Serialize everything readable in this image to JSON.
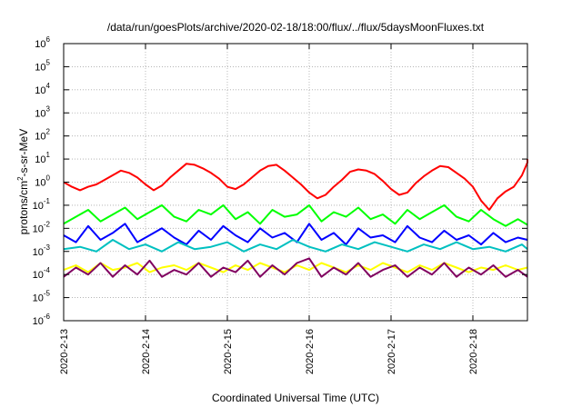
{
  "chart_data": {
    "type": "line",
    "title": "/data/run/goesPlots/archive/2020-02-18/18:00/flux/../flux/5daysMoonFluxes.txt",
    "xlabel": "Coordinated Universal Time (UTC)",
    "ylabel": "protons/cm²-s-sr-MeV",
    "ylabel_parts": {
      "prefix": "protons/cm",
      "sup": "2",
      "suffix": "-s-sr-MeV"
    },
    "yscale": "log",
    "ylim_exp": [
      -6,
      6
    ],
    "y_ticks": [
      {
        "base": "10",
        "exp": "-6"
      },
      {
        "base": "10",
        "exp": "-5"
      },
      {
        "base": "10",
        "exp": "-4"
      },
      {
        "base": "10",
        "exp": "-3"
      },
      {
        "base": "10",
        "exp": "-2"
      },
      {
        "base": "10",
        "exp": "-1"
      },
      {
        "base": "10",
        "exp": "0"
      },
      {
        "base": "10",
        "exp": "1"
      },
      {
        "base": "10",
        "exp": "2"
      },
      {
        "base": "10",
        "exp": "3"
      },
      {
        "base": "10",
        "exp": "4"
      },
      {
        "base": "10",
        "exp": "5"
      },
      {
        "base": "10",
        "exp": "6"
      }
    ],
    "x_ticks": [
      "2020-2-13",
      "2020-2-14",
      "2020-2-15",
      "2020-2-16",
      "2020-2-17",
      "2020-2-18"
    ],
    "xlim_days": [
      0,
      5.78
    ],
    "grid": true,
    "series": [
      {
        "color": "#ff0000",
        "x_days": [
          0.0,
          0.1,
          0.2,
          0.3,
          0.4,
          0.5,
          0.6,
          0.7,
          0.8,
          0.9,
          1.0,
          1.1,
          1.2,
          1.3,
          1.4,
          1.5,
          1.6,
          1.7,
          1.8,
          1.9,
          2.0,
          2.1,
          2.2,
          2.3,
          2.4,
          2.5,
          2.6,
          2.7,
          2.8,
          2.9,
          3.0,
          3.1,
          3.2,
          3.3,
          3.4,
          3.5,
          3.6,
          3.7,
          3.8,
          3.9,
          4.0,
          4.1,
          4.2,
          4.3,
          4.4,
          4.5,
          4.6,
          4.7,
          4.8,
          4.9,
          5.0,
          5.1,
          5.2,
          5.3,
          5.4,
          5.5,
          5.6,
          5.7,
          5.78
        ],
        "log10_y": [
          0.0,
          -0.2,
          -0.35,
          -0.2,
          -0.1,
          0.1,
          0.3,
          0.5,
          0.4,
          0.2,
          -0.1,
          -0.35,
          -0.15,
          0.2,
          0.5,
          0.8,
          0.75,
          0.6,
          0.4,
          0.15,
          -0.2,
          -0.3,
          -0.1,
          0.2,
          0.5,
          0.7,
          0.75,
          0.5,
          0.2,
          -0.1,
          -0.45,
          -0.7,
          -0.55,
          -0.2,
          0.1,
          0.45,
          0.55,
          0.5,
          0.35,
          0.05,
          -0.3,
          -0.55,
          -0.45,
          -0.05,
          0.25,
          0.5,
          0.7,
          0.65,
          0.4,
          0.15,
          -0.2,
          -0.8,
          -1.2,
          -0.7,
          -0.4,
          -0.2,
          0.3,
          0.85,
          1.0
        ]
      },
      {
        "color": "#00ff00",
        "x_days": [
          0.0,
          0.15,
          0.3,
          0.45,
          0.6,
          0.75,
          0.9,
          1.05,
          1.2,
          1.35,
          1.5,
          1.65,
          1.8,
          1.95,
          2.1,
          2.25,
          2.4,
          2.55,
          2.7,
          2.85,
          3.0,
          3.15,
          3.3,
          3.45,
          3.6,
          3.75,
          3.9,
          4.05,
          4.2,
          4.35,
          4.5,
          4.65,
          4.8,
          4.95,
          5.1,
          5.25,
          5.4,
          5.55,
          5.78
        ],
        "log10_y": [
          -1.8,
          -1.5,
          -1.2,
          -1.7,
          -1.4,
          -1.1,
          -1.6,
          -1.3,
          -1.0,
          -1.5,
          -1.7,
          -1.2,
          -1.4,
          -1.0,
          -1.6,
          -1.3,
          -1.8,
          -1.2,
          -1.5,
          -1.4,
          -1.0,
          -1.7,
          -1.3,
          -1.5,
          -1.1,
          -1.6,
          -1.4,
          -1.8,
          -1.2,
          -1.6,
          -1.3,
          -1.0,
          -1.5,
          -1.7,
          -1.2,
          -1.6,
          -1.9,
          -1.6,
          -1.85
        ]
      },
      {
        "color": "#0000ff",
        "x_days": [
          0.0,
          0.15,
          0.3,
          0.45,
          0.6,
          0.75,
          0.9,
          1.05,
          1.2,
          1.35,
          1.5,
          1.65,
          1.8,
          1.95,
          2.1,
          2.25,
          2.4,
          2.55,
          2.7,
          2.85,
          3.0,
          3.15,
          3.3,
          3.45,
          3.6,
          3.75,
          3.9,
          4.05,
          4.2,
          4.35,
          4.5,
          4.65,
          4.8,
          4.95,
          5.1,
          5.25,
          5.4,
          5.55,
          5.78
        ],
        "log10_y": [
          -2.3,
          -2.6,
          -1.9,
          -2.5,
          -2.2,
          -1.8,
          -2.6,
          -2.3,
          -2.0,
          -2.4,
          -2.7,
          -2.1,
          -2.5,
          -1.9,
          -2.3,
          -2.6,
          -2.0,
          -2.4,
          -2.2,
          -2.6,
          -1.8,
          -2.5,
          -2.2,
          -2.7,
          -2.0,
          -2.4,
          -2.3,
          -2.6,
          -1.9,
          -2.4,
          -2.6,
          -2.1,
          -2.5,
          -2.3,
          -2.7,
          -2.2,
          -2.6,
          -2.4,
          -2.5
        ]
      },
      {
        "color": "#00c0c0",
        "x_days": [
          0.0,
          0.2,
          0.4,
          0.6,
          0.8,
          1.0,
          1.2,
          1.4,
          1.6,
          1.8,
          2.0,
          2.2,
          2.4,
          2.6,
          2.8,
          3.0,
          3.2,
          3.4,
          3.6,
          3.8,
          4.0,
          4.2,
          4.4,
          4.6,
          4.8,
          5.0,
          5.2,
          5.4,
          5.6,
          5.78
        ],
        "log10_y": [
          -2.9,
          -2.8,
          -3.0,
          -2.5,
          -2.9,
          -2.7,
          -3.0,
          -2.6,
          -2.9,
          -2.8,
          -2.6,
          -3.0,
          -2.7,
          -2.9,
          -2.5,
          -2.8,
          -3.0,
          -2.7,
          -2.9,
          -2.6,
          -2.8,
          -3.0,
          -2.7,
          -2.9,
          -2.6,
          -2.9,
          -2.8,
          -3.0,
          -2.7,
          -2.9
        ]
      },
      {
        "color": "#ffff00",
        "x_days": [
          0.0,
          0.15,
          0.3,
          0.45,
          0.6,
          0.75,
          0.9,
          1.05,
          1.2,
          1.35,
          1.5,
          1.65,
          1.8,
          1.95,
          2.1,
          2.25,
          2.4,
          2.55,
          2.7,
          2.85,
          3.0,
          3.15,
          3.3,
          3.45,
          3.6,
          3.75,
          3.9,
          4.05,
          4.2,
          4.35,
          4.5,
          4.65,
          4.8,
          4.95,
          5.1,
          5.25,
          5.4,
          5.55,
          5.78
        ],
        "log10_y": [
          -3.8,
          -3.6,
          -3.9,
          -3.5,
          -3.8,
          -3.7,
          -3.5,
          -3.9,
          -3.7,
          -3.6,
          -3.8,
          -3.5,
          -3.7,
          -3.9,
          -3.6,
          -3.8,
          -3.5,
          -3.7,
          -3.9,
          -3.6,
          -3.8,
          -3.5,
          -3.7,
          -3.9,
          -3.6,
          -3.8,
          -3.5,
          -3.7,
          -3.9,
          -3.6,
          -3.8,
          -3.5,
          -3.7,
          -3.9,
          -3.7,
          -3.8,
          -3.6,
          -3.8,
          -3.7
        ]
      },
      {
        "color": "#800060",
        "x_days": [
          0.0,
          0.15,
          0.3,
          0.45,
          0.6,
          0.75,
          0.9,
          1.05,
          1.2,
          1.35,
          1.5,
          1.65,
          1.8,
          1.95,
          2.1,
          2.25,
          2.4,
          2.55,
          2.7,
          2.85,
          3.0,
          3.15,
          3.3,
          3.45,
          3.6,
          3.75,
          3.9,
          4.05,
          4.2,
          4.35,
          4.5,
          4.65,
          4.8,
          4.95,
          5.1,
          5.25,
          5.4,
          5.55,
          5.78
        ],
        "log10_y": [
          -4.1,
          -3.7,
          -4.0,
          -3.5,
          -4.1,
          -3.6,
          -4.0,
          -3.4,
          -4.1,
          -3.8,
          -4.0,
          -3.5,
          -4.1,
          -3.7,
          -3.9,
          -3.4,
          -4.1,
          -3.6,
          -4.0,
          -3.5,
          -3.3,
          -4.1,
          -3.7,
          -4.0,
          -3.5,
          -4.1,
          -3.8,
          -3.6,
          -4.1,
          -3.7,
          -4.0,
          -3.5,
          -4.1,
          -3.7,
          -4.0,
          -3.6,
          -4.1,
          -3.8,
          -4.1
        ]
      }
    ]
  }
}
